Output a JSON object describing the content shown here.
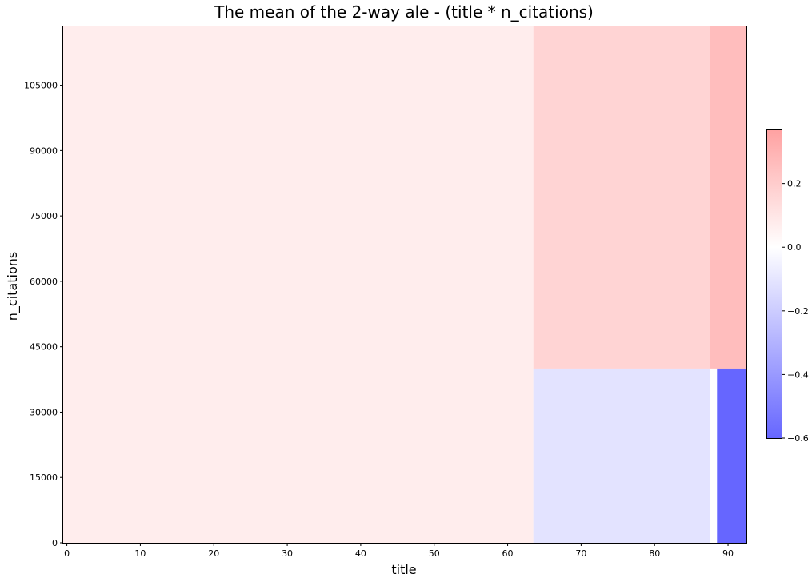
{
  "chart_data": {
    "type": "heatmap",
    "title": "The mean of the 2-way ale - (title * n_citations)",
    "xlabel": "title",
    "ylabel": "n_citations",
    "xlim": [
      -0.5,
      92.5
    ],
    "ylim": [
      0,
      118500
    ],
    "xticks": [
      0,
      10,
      20,
      30,
      40,
      50,
      60,
      70,
      80,
      90
    ],
    "yticks": [
      0,
      15000,
      30000,
      45000,
      60000,
      75000,
      90000,
      105000
    ],
    "cells": [
      {
        "x0": -0.5,
        "x1": 63.5,
        "y0": 0,
        "y1": 118500,
        "value": 0.07
      },
      {
        "x0": 63.5,
        "x1": 87.5,
        "y0": 40000,
        "y1": 118500,
        "value": 0.17
      },
      {
        "x0": 87.5,
        "x1": 92.5,
        "y0": 40000,
        "y1": 118500,
        "value": 0.26
      },
      {
        "x0": 63.5,
        "x1": 87.5,
        "y0": 0,
        "y1": 40000,
        "value": -0.11
      },
      {
        "x0": 87.5,
        "x1": 88.5,
        "y0": 0,
        "y1": 40000,
        "value": 0.0
      },
      {
        "x0": 88.5,
        "x1": 92.5,
        "y0": 0,
        "y1": 40000,
        "value": -0.6
      }
    ],
    "colorbar": {
      "min": -0.6,
      "max": 0.37,
      "ticks": [
        -0.6,
        -0.4,
        -0.2,
        0.0,
        0.2
      ],
      "tick_labels": [
        "−0.6",
        "−0.4",
        "−0.2",
        "0.0",
        "0.2"
      ],
      "colors": {
        "low": "#6666ff",
        "mid": "#ffffff",
        "high": "#ff6666"
      },
      "position": "right"
    }
  }
}
